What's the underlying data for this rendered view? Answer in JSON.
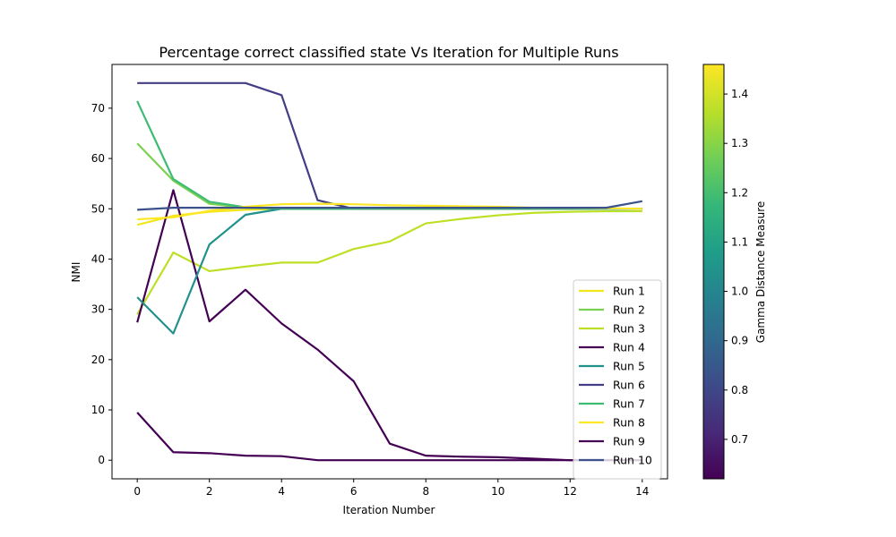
{
  "chart_data": {
    "type": "line",
    "title": "Percentage correct classified state Vs Iteration for Multiple Runs",
    "xlabel": "Iteration Number",
    "ylabel": "NMI",
    "xlim": [
      -0.7,
      14.7
    ],
    "ylim": [
      -3.7,
      78.7
    ],
    "xticks": [
      0,
      2,
      4,
      6,
      8,
      10,
      12,
      14
    ],
    "yticks": [
      0,
      10,
      20,
      30,
      40,
      50,
      60,
      70
    ],
    "x": [
      0,
      1,
      2,
      3,
      4,
      5,
      6,
      7,
      8,
      9,
      10,
      11,
      12,
      13,
      14
    ],
    "legend_position": "lower right",
    "colorbar": {
      "label": "Gamma Distance Measure",
      "min": 0.62,
      "max": 1.46,
      "ticks": [
        0.7,
        0.8,
        0.9,
        1.0,
        1.1,
        1.2,
        1.3,
        1.4
      ],
      "tick_labels": [
        "0.7",
        "0.8",
        "0.9",
        "1.0",
        "1.1",
        "1.2",
        "1.3",
        "1.4"
      ],
      "colormap": "viridis"
    },
    "series": [
      {
        "name": "Run 1",
        "color": "#f1e51d",
        "values": [
          46.8,
          48.6,
          49.4,
          49.8,
          50.0,
          50.0,
          50.0,
          50.0,
          50.0,
          50.0,
          50.0,
          50.0,
          50.0,
          50.0,
          50.0
        ]
      },
      {
        "name": "Run 2",
        "color": "#7ad151",
        "values": [
          63.0,
          55.6,
          51.0,
          50.2,
          50.0,
          50.0,
          50.0,
          50.0,
          50.0,
          50.0,
          50.0,
          50.0,
          50.0,
          50.0,
          50.0
        ]
      },
      {
        "name": "Run 3",
        "color": "#bddf26",
        "values": [
          29.0,
          41.3,
          37.6,
          38.5,
          39.3,
          39.3,
          42.0,
          43.5,
          47.1,
          48.0,
          48.7,
          49.2,
          49.4,
          49.5,
          49.5
        ]
      },
      {
        "name": "Run 4",
        "color": "#440154",
        "values": [
          27.4,
          53.7,
          27.6,
          33.9,
          27.2,
          22.0,
          15.7,
          3.3,
          0.9,
          0.7,
          0.6,
          0.3,
          0.0,
          0.0,
          0.0
        ]
      },
      {
        "name": "Run 5",
        "color": "#21918c",
        "values": [
          32.4,
          25.2,
          42.9,
          48.8,
          50.0,
          50.0,
          50.0,
          50.0,
          50.0,
          50.0,
          50.0,
          50.0,
          50.0,
          50.0,
          50.0
        ]
      },
      {
        "name": "Run 6",
        "color": "#433e85",
        "values": [
          75.0,
          75.0,
          75.0,
          75.0,
          72.6,
          51.7,
          50.0,
          50.0,
          50.0,
          50.0,
          50.0,
          50.0,
          50.0,
          50.0,
          50.0
        ]
      },
      {
        "name": "Run 7",
        "color": "#3dbc74",
        "values": [
          71.4,
          55.9,
          51.4,
          50.3,
          50.0,
          50.0,
          50.0,
          50.0,
          50.0,
          50.0,
          50.0,
          50.0,
          50.0,
          50.0,
          50.0
        ]
      },
      {
        "name": "Run 8",
        "color": "#fde725",
        "values": [
          47.9,
          48.3,
          49.6,
          50.4,
          50.9,
          51.0,
          50.9,
          50.7,
          50.6,
          50.5,
          50.4,
          50.2,
          50.2,
          50.1,
          50.0
        ]
      },
      {
        "name": "Run 9",
        "color": "#440154",
        "values": [
          9.5,
          1.6,
          1.4,
          0.9,
          0.8,
          0.0,
          0.0,
          0.0,
          0.0,
          0.0,
          0.0,
          0.0,
          0.0,
          0.0,
          0.0
        ]
      },
      {
        "name": "Run 10",
        "color": "#3b528b",
        "values": [
          49.8,
          50.2,
          50.2,
          50.2,
          50.2,
          50.2,
          50.2,
          50.2,
          50.2,
          50.2,
          50.2,
          50.2,
          50.2,
          50.2,
          51.5
        ]
      }
    ]
  }
}
